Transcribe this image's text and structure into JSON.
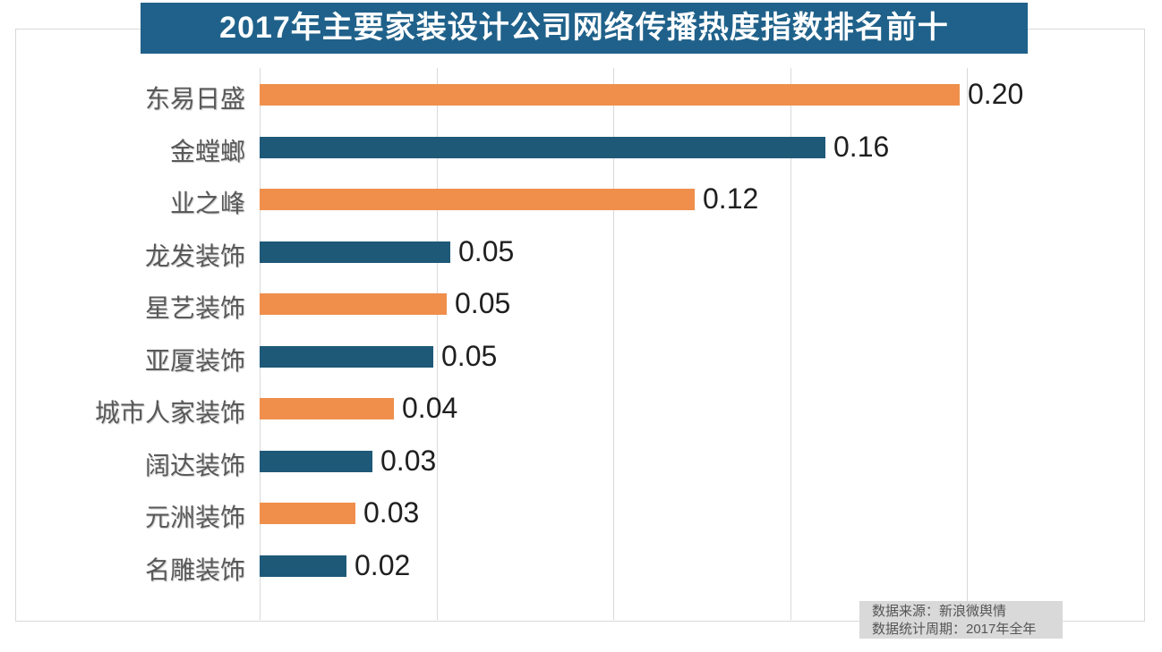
{
  "title": "2017年主要家装设计公司网络传播热度指数排名前十",
  "footer": {
    "source": "数据来源：新浪微舆情",
    "period": "数据统计周期：2017年全年"
  },
  "colors": {
    "title_bg": "#1f618a",
    "bar_orange": "#ef8f4b",
    "bar_blue": "#1e5978",
    "grid": "#d9d9d9",
    "category_text": "#595959",
    "value_text": "#1f1f1f",
    "footer_bg": "#d9d9d9",
    "footer_text": "#555555"
  },
  "chart_data": {
    "type": "bar",
    "orientation": "horizontal",
    "title": "2017年主要家装设计公司网络传播热度指数排名前十",
    "categories": [
      "东易日盛",
      "金螳螂",
      "业之峰",
      "龙发装饰",
      "星艺装饰",
      "亚厦装饰",
      "城市人家装饰",
      "阔达装饰",
      "元洲装饰",
      "名雕装饰"
    ],
    "values": [
      0.2,
      0.16,
      0.12,
      0.05,
      0.05,
      0.05,
      0.04,
      0.03,
      0.03,
      0.02
    ],
    "value_labels": [
      "0.20",
      "0.16",
      "0.12",
      "0.05",
      "0.05",
      "0.05",
      "0.04",
      "0.03",
      "0.03",
      "0.02"
    ],
    "bar_lengths_estimated": [
      0.198,
      0.16,
      0.123,
      0.054,
      0.053,
      0.049,
      0.038,
      0.032,
      0.027,
      0.0245
    ],
    "bar_colors": [
      "#ef8f4b",
      "#1e5978",
      "#ef8f4b",
      "#1e5978",
      "#ef8f4b",
      "#1e5978",
      "#ef8f4b",
      "#1e5978",
      "#ef8f4b",
      "#1e5978"
    ],
    "xlabel": "",
    "ylabel": "",
    "xlim": [
      0,
      0.25
    ],
    "grid_step": 0.05,
    "grid": "vertical-only",
    "legend": "none",
    "annotations": [
      "数据来源：新浪微舆情",
      "数据统计周期：2017年全年"
    ]
  }
}
